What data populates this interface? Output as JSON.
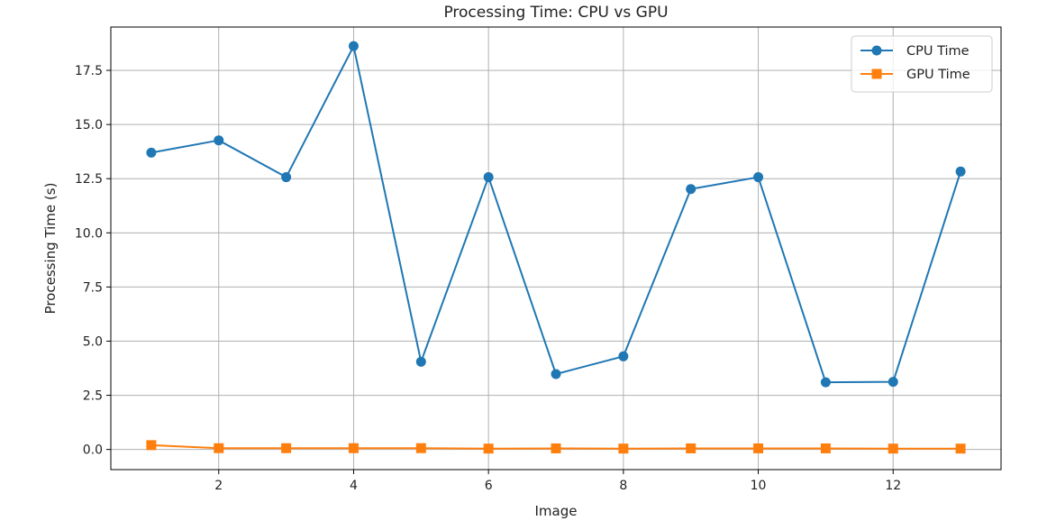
{
  "chart_data": {
    "type": "line",
    "title": "Processing Time: CPU vs GPU",
    "xlabel": "Image",
    "ylabel": "Processing Time (s)",
    "x": [
      1,
      2,
      3,
      4,
      5,
      6,
      7,
      8,
      9,
      10,
      11,
      12,
      13
    ],
    "xlim": [
      0.4,
      13.6
    ],
    "ylim": [
      -0.93,
      19.5
    ],
    "xticks": [
      2,
      4,
      6,
      8,
      10,
      12
    ],
    "xtick_labels": [
      "2",
      "4",
      "6",
      "8",
      "10",
      "12"
    ],
    "yticks": [
      0,
      2.5,
      5,
      7.5,
      10,
      12.5,
      15,
      17.5
    ],
    "ytick_labels": [
      "0.0",
      "2.5",
      "5.0",
      "7.5",
      "10.0",
      "12.5",
      "15.0",
      "17.5"
    ],
    "grid": true,
    "legend_position": "top-right",
    "series": [
      {
        "name": "CPU Time",
        "color": "#1f77b4",
        "marker": "circle",
        "values": [
          13.7,
          14.27,
          12.57,
          18.62,
          4.05,
          12.57,
          3.48,
          4.3,
          12.02,
          12.57,
          3.1,
          3.12,
          12.83
        ]
      },
      {
        "name": "GPU Time",
        "color": "#ff7f0e",
        "marker": "square",
        "values": [
          0.2,
          0.06,
          0.06,
          0.06,
          0.06,
          0.04,
          0.05,
          0.04,
          0.05,
          0.05,
          0.05,
          0.04,
          0.04
        ]
      }
    ]
  }
}
